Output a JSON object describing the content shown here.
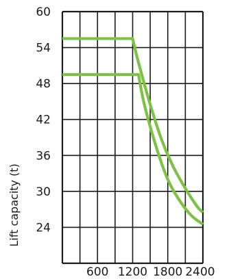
{
  "chart_data": {
    "type": "line",
    "title": "",
    "xlabel": "",
    "ylabel": "Lift capacity (t)",
    "xlim": [
      0,
      2400
    ],
    "ylim": [
      18,
      60
    ],
    "x_ticks": [
      600,
      1200,
      1800,
      2400
    ],
    "x_tick_labels": [
      "600",
      "1200",
      "1800",
      "2400"
    ],
    "y_ticks": [
      60,
      54,
      48,
      42,
      36,
      30,
      24
    ],
    "y_tick_labels": [
      "60",
      "54",
      "48",
      "42",
      "36",
      "30",
      "24"
    ],
    "x_grid": [
      0,
      300,
      600,
      900,
      1200,
      1500,
      1800,
      2100,
      2400
    ],
    "y_grid": [
      18,
      24,
      30,
      36,
      42,
      48,
      54,
      60
    ],
    "grid": true,
    "series": [
      {
        "color": "#7dc242",
        "points": [
          [
            0,
            55.5
          ],
          [
            1200,
            55.5
          ],
          [
            1300,
            51.5
          ],
          [
            1500,
            44.5
          ],
          [
            1700,
            38.5
          ],
          [
            1900,
            34.0
          ],
          [
            2100,
            30.5
          ],
          [
            2300,
            27.5
          ],
          [
            2400,
            26.5
          ]
        ]
      },
      {
        "color": "#7dc242",
        "points": [
          [
            0,
            49.5
          ],
          [
            1300,
            49.5
          ],
          [
            1400,
            44.5
          ],
          [
            1600,
            37.5
          ],
          [
            1800,
            32.0
          ],
          [
            2000,
            28.5
          ],
          [
            2200,
            26.0
          ],
          [
            2400,
            24.5
          ]
        ]
      }
    ]
  }
}
